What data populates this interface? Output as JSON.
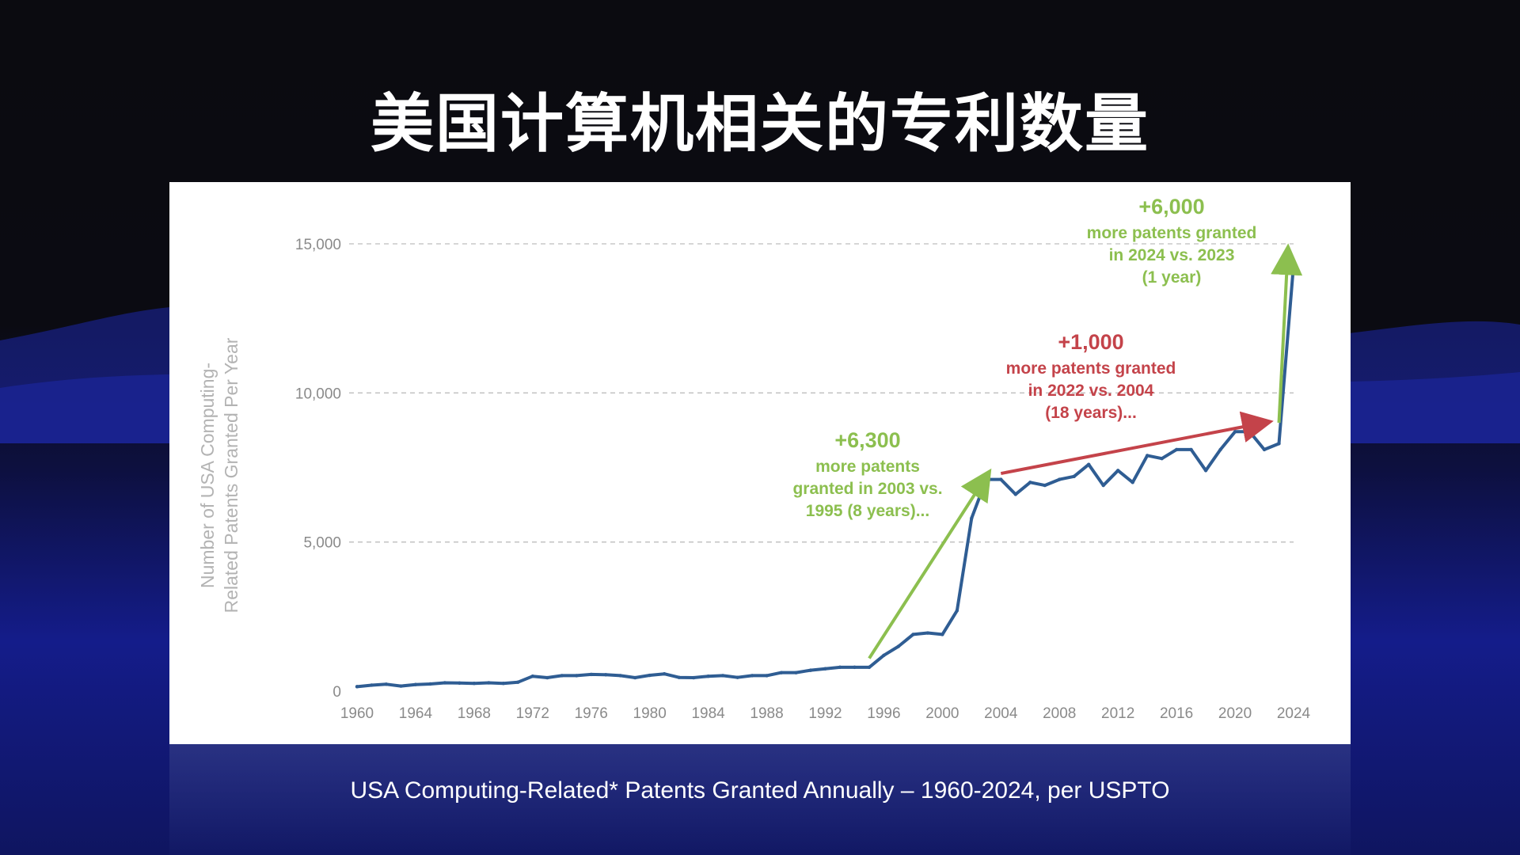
{
  "page": {
    "title": "美国计算机相关的专利数量"
  },
  "caption": "USA Computing-Related* Patents Granted Annually – 1960-2024, per USPTO",
  "colors": {
    "line": "#2f5d93",
    "green": "#8cbf4f",
    "red": "#c4434a",
    "grid": "#bdbdbd"
  },
  "chart_data": {
    "type": "line",
    "title": "",
    "xlabel": "",
    "ylabel": "Number of USA Computing-Related Patents Granted Per Year",
    "ylabel_lines": [
      "Number of USA Computing-",
      "Related Patents Granted Per Year"
    ],
    "xlim": [
      1960,
      2024
    ],
    "ylim": [
      0,
      15000
    ],
    "yticks": [
      0,
      5000,
      10000,
      15000
    ],
    "ytick_labels": [
      "0",
      "5,000",
      "10,000",
      "15,000"
    ],
    "xticks": [
      "1960",
      "1964",
      "1968",
      "1972",
      "1976",
      "1980",
      "1984",
      "1988",
      "1992",
      "1996",
      "2000",
      "2004",
      "2008",
      "2012",
      "2016",
      "2020",
      "2024"
    ],
    "grid": "horizontal dashed",
    "series": [
      {
        "name": "Patents granted",
        "x": [
          1960,
          1961,
          1962,
          1963,
          1964,
          1965,
          1966,
          1967,
          1968,
          1969,
          1970,
          1971,
          1972,
          1973,
          1974,
          1975,
          1976,
          1977,
          1978,
          1979,
          1980,
          1981,
          1982,
          1983,
          1984,
          1985,
          1986,
          1987,
          1988,
          1989,
          1990,
          1991,
          1992,
          1993,
          1994,
          1995,
          1996,
          1997,
          1998,
          1999,
          2000,
          2001,
          2002,
          2003,
          2004,
          2005,
          2006,
          2007,
          2008,
          2009,
          2010,
          2011,
          2012,
          2013,
          2014,
          2015,
          2016,
          2017,
          2018,
          2019,
          2020,
          2021,
          2022,
          2023,
          2024
        ],
        "values": [
          150,
          200,
          230,
          170,
          220,
          240,
          280,
          270,
          260,
          280,
          260,
          300,
          500,
          450,
          520,
          520,
          560,
          550,
          520,
          450,
          530,
          580,
          460,
          450,
          500,
          520,
          460,
          520,
          520,
          620,
          620,
          700,
          750,
          800,
          800,
          800,
          1200,
          1500,
          1900,
          1950,
          1900,
          2700,
          5800,
          7100,
          7100,
          6600,
          7000,
          6900,
          7100,
          7200,
          7600,
          6900,
          7400,
          7000,
          7900,
          7800,
          8100,
          8100,
          7400,
          8100,
          8700,
          8700,
          8100,
          8300,
          14300
        ]
      }
    ],
    "annotations": [
      {
        "id": "a1",
        "color": "green",
        "headline": "+6,300",
        "lines": [
          "more patents",
          "granted in 2003 vs.",
          "1995 (8 years)..."
        ],
        "arrow_from": [
          1995,
          1100
        ],
        "arrow_to": [
          2003,
          7200
        ]
      },
      {
        "id": "a2",
        "color": "red",
        "headline": "+1,000",
        "lines": [
          "more patents granted",
          "in 2022 vs. 2004",
          "(18 years)..."
        ],
        "arrow_from": [
          2004,
          7300
        ],
        "arrow_to": [
          2022,
          9000
        ]
      },
      {
        "id": "a3",
        "color": "green",
        "headline": "+6,000",
        "lines": [
          "more patents granted",
          "in 2024 vs. 2023",
          "(1 year)"
        ],
        "arrow_from": [
          2023,
          9000
        ],
        "arrow_to": [
          2023.6,
          14700
        ]
      }
    ]
  }
}
